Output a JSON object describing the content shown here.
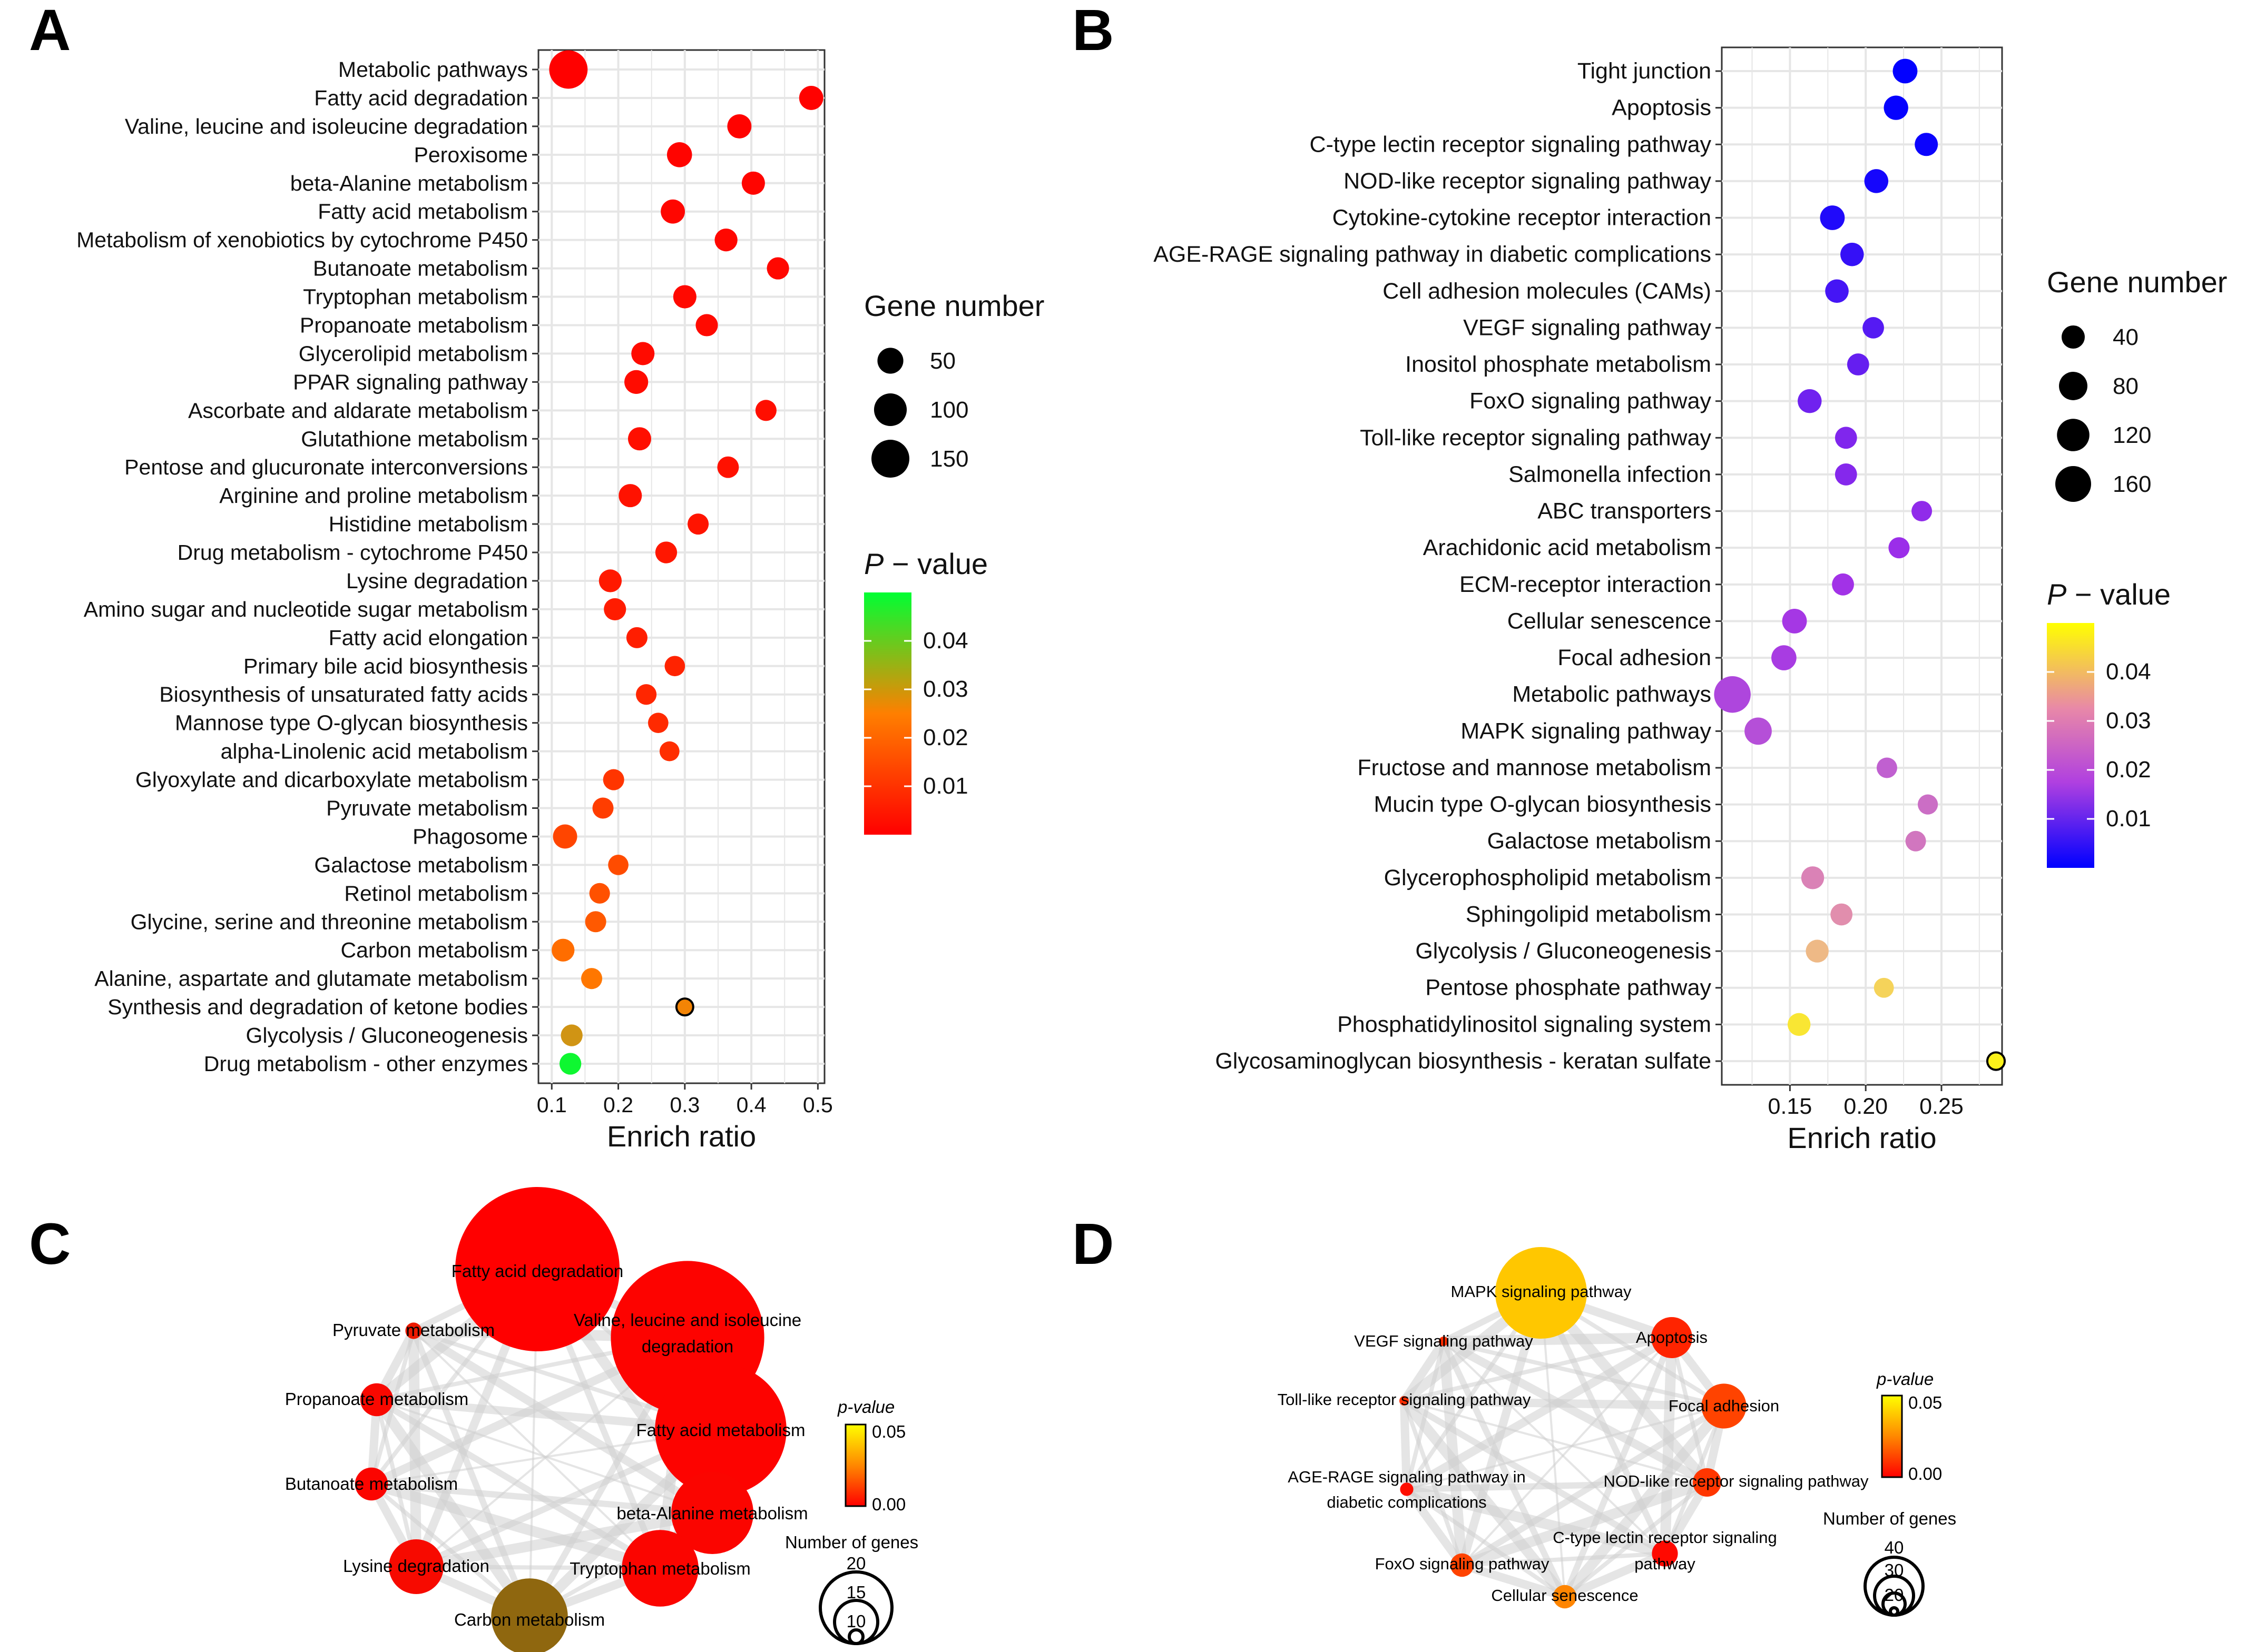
{
  "chart_data": [
    {
      "panel": "A",
      "type": "scatter",
      "xlabel": "Enrich ratio",
      "xlim": [
        0.08,
        0.51
      ],
      "xticks": [
        0.1,
        0.2,
        0.3,
        0.4,
        0.5
      ],
      "size_legend": {
        "title": "Gene number",
        "values": [
          50,
          100,
          150
        ]
      },
      "color_legend": {
        "title_italic": "P",
        "title_rest": " − value",
        "ticks": [
          0.01,
          0.02,
          0.03,
          0.04
        ],
        "low_color": "#FF0000",
        "high_color": "#00FF00",
        "range": [
          0.0,
          0.05
        ]
      },
      "points": [
        {
          "label": "Metabolic pathways",
          "ratio": 0.125,
          "genes": 155,
          "p": 0.0001
        },
        {
          "label": "Fatty acid degradation",
          "ratio": 0.49,
          "genes": 40,
          "p": 0.0003
        },
        {
          "label": "Valine, leucine and isoleucine degradation",
          "ratio": 0.382,
          "genes": 40,
          "p": 0.0005
        },
        {
          "label": "Peroxisome",
          "ratio": 0.292,
          "genes": 45,
          "p": 0.0007
        },
        {
          "label": "beta-Alanine metabolism",
          "ratio": 0.403,
          "genes": 35,
          "p": 0.0009
        },
        {
          "label": "Fatty acid metabolism",
          "ratio": 0.282,
          "genes": 40,
          "p": 0.0011
        },
        {
          "label": "Metabolism of xenobiotics by cytochrome P450",
          "ratio": 0.362,
          "genes": 33,
          "p": 0.0013
        },
        {
          "label": "Butanoate metabolism",
          "ratio": 0.44,
          "genes": 30,
          "p": 0.0015
        },
        {
          "label": "Tryptophan metabolism",
          "ratio": 0.3,
          "genes": 35,
          "p": 0.0017
        },
        {
          "label": "Propanoate metabolism",
          "ratio": 0.333,
          "genes": 30,
          "p": 0.0019
        },
        {
          "label": "Glycerolipid metabolism",
          "ratio": 0.237,
          "genes": 35,
          "p": 0.0021
        },
        {
          "label": "PPAR signaling pathway",
          "ratio": 0.227,
          "genes": 38,
          "p": 0.0024
        },
        {
          "label": "Ascorbate and aldarate metabolism",
          "ratio": 0.422,
          "genes": 25,
          "p": 0.0027
        },
        {
          "label": "Glutathione metabolism",
          "ratio": 0.232,
          "genes": 35,
          "p": 0.003
        },
        {
          "label": "Pentose and glucuronate interconversions",
          "ratio": 0.365,
          "genes": 27,
          "p": 0.0033
        },
        {
          "label": "Arginine and proline metabolism",
          "ratio": 0.218,
          "genes": 35,
          "p": 0.0036
        },
        {
          "label": "Histidine metabolism",
          "ratio": 0.32,
          "genes": 25,
          "p": 0.004
        },
        {
          "label": "Drug metabolism - cytochrome P450",
          "ratio": 0.272,
          "genes": 28,
          "p": 0.0045
        },
        {
          "label": "Lysine degradation",
          "ratio": 0.188,
          "genes": 33,
          "p": 0.005
        },
        {
          "label": "Amino sugar and nucleotide sugar metabolism",
          "ratio": 0.195,
          "genes": 30,
          "p": 0.0055
        },
        {
          "label": "Fatty acid elongation",
          "ratio": 0.228,
          "genes": 25,
          "p": 0.006
        },
        {
          "label": "Primary bile acid biosynthesis",
          "ratio": 0.285,
          "genes": 22,
          "p": 0.0068
        },
        {
          "label": "Biosynthesis of unsaturated fatty acids",
          "ratio": 0.242,
          "genes": 23,
          "p": 0.0075
        },
        {
          "label": "Mannose type O-glycan biosynthesis",
          "ratio": 0.26,
          "genes": 22,
          "p": 0.0082
        },
        {
          "label": "alpha-Linolenic acid metabolism",
          "ratio": 0.277,
          "genes": 20,
          "p": 0.009
        },
        {
          "label": "Glyoxylate and dicarboxylate metabolism",
          "ratio": 0.193,
          "genes": 25,
          "p": 0.0105
        },
        {
          "label": "Pyruvate metabolism",
          "ratio": 0.177,
          "genes": 25,
          "p": 0.012
        },
        {
          "label": "Phagosome",
          "ratio": 0.12,
          "genes": 40,
          "p": 0.0135
        },
        {
          "label": "Galactose metabolism",
          "ratio": 0.2,
          "genes": 22,
          "p": 0.015
        },
        {
          "label": "Retinol metabolism",
          "ratio": 0.172,
          "genes": 23,
          "p": 0.016
        },
        {
          "label": "Glycine, serine and threonine metabolism",
          "ratio": 0.166,
          "genes": 25,
          "p": 0.0175
        },
        {
          "label": "Carbon metabolism",
          "ratio": 0.117,
          "genes": 33,
          "p": 0.0215
        },
        {
          "label": "Alanine, aspartate and glutamate metabolism",
          "ratio": 0.16,
          "genes": 25,
          "p": 0.0235
        },
        {
          "label": "Synthesis and degradation of ketone bodies",
          "ratio": 0.3,
          "genes": 10,
          "p": 0.027
        },
        {
          "label": "Glycolysis / Gluconeogenesis",
          "ratio": 0.13,
          "genes": 28,
          "p": 0.033
        },
        {
          "label": "Drug metabolism - other enzymes",
          "ratio": 0.128,
          "genes": 28,
          "p": 0.049
        }
      ]
    },
    {
      "panel": "B",
      "type": "scatter",
      "xlabel": "Enrich ratio",
      "xlim": [
        0.105,
        0.29
      ],
      "xticks": [
        0.15,
        0.2,
        0.25
      ],
      "xtick_labels": [
        "0.15",
        "0.20",
        "0.25"
      ],
      "size_legend": {
        "title": "Gene number",
        "values": [
          40,
          80,
          120,
          160
        ]
      },
      "color_legend": {
        "title_italic": "P",
        "title_rest": " − value",
        "ticks": [
          0.01,
          0.02,
          0.03,
          0.04
        ],
        "low_color": "#0000FF",
        "mid_color": "#D070D0",
        "high_color": "#FFFF00",
        "range": [
          0.0,
          0.05
        ]
      },
      "points": [
        {
          "label": "Tight junction",
          "ratio": 0.226,
          "genes": 50,
          "p": 0.0003
        },
        {
          "label": "Apoptosis",
          "ratio": 0.22,
          "genes": 48,
          "p": 0.0006
        },
        {
          "label": "C-type lectin receptor signaling pathway",
          "ratio": 0.24,
          "genes": 40,
          "p": 0.001
        },
        {
          "label": "NOD-like receptor signaling pathway",
          "ratio": 0.207,
          "genes": 45,
          "p": 0.002
        },
        {
          "label": "Cytokine-cytokine receptor interaction",
          "ratio": 0.178,
          "genes": 50,
          "p": 0.003
        },
        {
          "label": "AGE-RAGE signaling pathway in diabetic complications",
          "ratio": 0.191,
          "genes": 42,
          "p": 0.005
        },
        {
          "label": "Cell adhesion molecules (CAMs)",
          "ratio": 0.181,
          "genes": 42,
          "p": 0.0065
        },
        {
          "label": "VEGF signaling pathway",
          "ratio": 0.205,
          "genes": 30,
          "p": 0.008
        },
        {
          "label": "Inositol phosphate metabolism",
          "ratio": 0.195,
          "genes": 33,
          "p": 0.0095
        },
        {
          "label": "FoxO signaling pathway",
          "ratio": 0.163,
          "genes": 45,
          "p": 0.0105
        },
        {
          "label": "Toll-like receptor signaling pathway",
          "ratio": 0.187,
          "genes": 33,
          "p": 0.012
        },
        {
          "label": "Salmonella infection",
          "ratio": 0.187,
          "genes": 33,
          "p": 0.0125
        },
        {
          "label": "ABC transporters",
          "ratio": 0.237,
          "genes": 25,
          "p": 0.0135
        },
        {
          "label": "Arachidonic acid metabolism",
          "ratio": 0.222,
          "genes": 28,
          "p": 0.0145
        },
        {
          "label": "ECM-receptor interaction",
          "ratio": 0.185,
          "genes": 33,
          "p": 0.0155
        },
        {
          "label": "Cellular senescence",
          "ratio": 0.153,
          "genes": 50,
          "p": 0.0165
        },
        {
          "label": "Focal adhesion",
          "ratio": 0.146,
          "genes": 53,
          "p": 0.0175
        },
        {
          "label": "Metabolic pathways",
          "ratio": 0.112,
          "genes": 170,
          "p": 0.0195
        },
        {
          "label": "MAPK signaling pathway",
          "ratio": 0.129,
          "genes": 70,
          "p": 0.0215
        },
        {
          "label": "Fructose and mannose metabolism",
          "ratio": 0.214,
          "genes": 25,
          "p": 0.025
        },
        {
          "label": "Mucin type O-glycan biosynthesis",
          "ratio": 0.241,
          "genes": 23,
          "p": 0.0275
        },
        {
          "label": "Galactose metabolism",
          "ratio": 0.233,
          "genes": 25,
          "p": 0.029
        },
        {
          "label": "Glycerophospholipid metabolism",
          "ratio": 0.165,
          "genes": 38,
          "p": 0.031
        },
        {
          "label": "Sphingolipid metabolism",
          "ratio": 0.184,
          "genes": 33,
          "p": 0.033
        },
        {
          "label": "Glycolysis / Gluconeogenesis",
          "ratio": 0.168,
          "genes": 38,
          "p": 0.039
        },
        {
          "label": "Pentose phosphate pathway",
          "ratio": 0.212,
          "genes": 22,
          "p": 0.043
        },
        {
          "label": "Phosphatidylinositol signaling system",
          "ratio": 0.156,
          "genes": 38,
          "p": 0.046
        },
        {
          "label": "Glycosaminoglycan biosynthesis - keratan sulfate",
          "ratio": 0.286,
          "genes": 12,
          "p": 0.048
        }
      ]
    },
    {
      "panel": "C",
      "type": "network",
      "color_legend": {
        "title": "p-value",
        "ticks": [
          "0.05",
          "0.00"
        ],
        "low_color": "#FF0000",
        "high_color": "#FFFF00"
      },
      "size_legend": {
        "title": "Number of genes",
        "values": [
          "20",
          "15",
          "10"
        ]
      },
      "nodes": [
        {
          "label": "Fatty acid degradation",
          "genes": 30,
          "p": 0.0
        },
        {
          "label": "Valine, leucine and isoleucine degradation",
          "genes": 28,
          "p": 0.001
        },
        {
          "label": "Fatty acid metabolism",
          "genes": 24,
          "p": 0.001
        },
        {
          "label": "beta-Alanine metabolism",
          "genes": 15,
          "p": 0.002
        },
        {
          "label": "Tryptophan metabolism",
          "genes": 14,
          "p": 0.002
        },
        {
          "label": "Carbon metabolism",
          "genes": 14,
          "p": 0.032
        },
        {
          "label": "Lysine degradation",
          "genes": 10,
          "p": 0.004
        },
        {
          "label": "Butanoate metabolism",
          "genes": 6,
          "p": 0.002
        },
        {
          "label": "Propanoate metabolism",
          "genes": 6,
          "p": 0.003
        },
        {
          "label": "Pyruvate metabolism",
          "genes": 3,
          "p": 0.01
        }
      ]
    },
    {
      "panel": "D",
      "type": "network",
      "color_legend": {
        "title": "p-value",
        "ticks": [
          "0.05",
          "0.00"
        ],
        "low_color": "#FF0000",
        "high_color": "#FFFF00"
      },
      "size_legend": {
        "title": "Number of genes",
        "values": [
          "40",
          "30",
          "20"
        ]
      },
      "nodes": [
        {
          "label": "MAPK signaling pathway",
          "genes": 70,
          "p": 0.045
        },
        {
          "label": "Apoptosis",
          "genes": 30,
          "p": 0.008
        },
        {
          "label": "Focal adhesion",
          "genes": 33,
          "p": 0.015
        },
        {
          "label": "NOD-like receptor signaling pathway",
          "genes": 20,
          "p": 0.012
        },
        {
          "label": "C-type lectin receptor signaling pathway",
          "genes": 18,
          "p": 0.002
        },
        {
          "label": "Cellular senescence",
          "genes": 16,
          "p": 0.03
        },
        {
          "label": "FoxO signaling pathway",
          "genes": 16,
          "p": 0.015
        },
        {
          "label": "AGE-RAGE signaling pathway in diabetic complications",
          "genes": 8,
          "p": 0.003
        },
        {
          "label": "Toll-like receptor signaling pathway",
          "genes": 4,
          "p": 0.01
        },
        {
          "label": "VEGF signaling pathway",
          "genes": 3,
          "p": 0.01
        }
      ]
    }
  ],
  "panels": {
    "a_letter": "A",
    "b_letter": "B",
    "c_letter": "C",
    "d_letter": "D"
  },
  "network_c_text": {
    "n0a": "Fatty acid degradation",
    "n1a": "Valine, leucine and isoleucine",
    "n1b": "degradation",
    "n2a": "Fatty acid metabolism",
    "n3a": "beta-Alanine metabolism",
    "n4a": "Tryptophan metabolism",
    "n5a": "Carbon metabolism",
    "n6a": "Lysine degradation",
    "n7a": "Butanoate metabolism",
    "n8a": "Propanoate metabolism",
    "n9a": "Pyruvate metabolism"
  },
  "network_d_text": {
    "n0a": "MAPK signaling pathway",
    "n1a": "Apoptosis",
    "n2a": "Focal adhesion",
    "n3a": "NOD-like receptor signaling pathway",
    "n4a": "C-type lectin receptor signaling",
    "n4b": "pathway",
    "n5a": "Cellular senescence",
    "n6a": "FoxO signaling pathway",
    "n7a": "AGE-RAGE signaling pathway in",
    "n7b": "diabetic complications",
    "n8a": "Toll-like receptor signaling pathway",
    "n9a": "VEGF signaling pathway"
  }
}
